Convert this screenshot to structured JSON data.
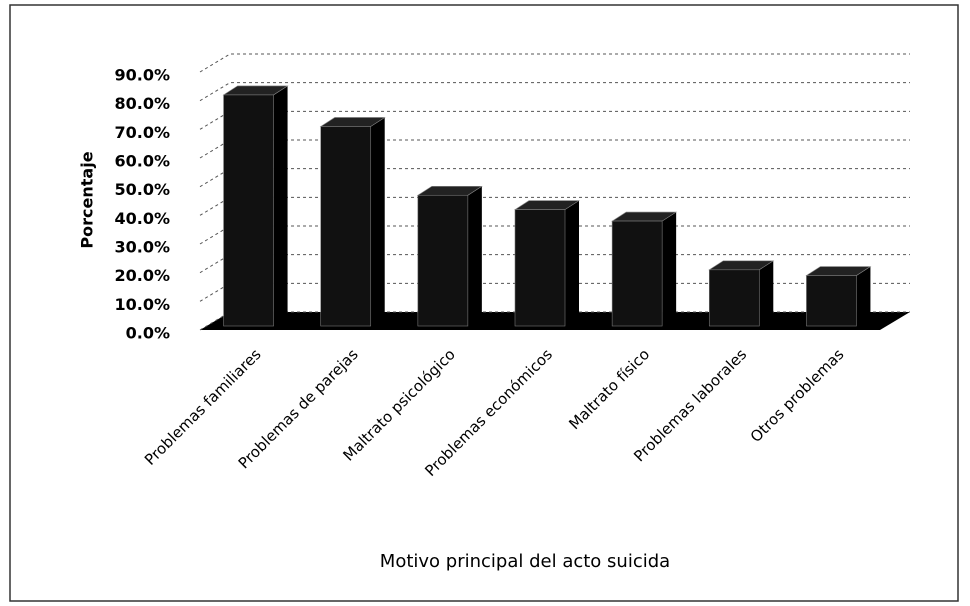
{
  "chart_data": {
    "type": "bar",
    "x_label": "Motivo principal del acto suicida",
    "y_label": "Porcentaje",
    "categories": [
      "Problemas familiares",
      "Problemas de parejas",
      "Maltrato psicológico",
      "Problemas económicos",
      "Maltrato físico",
      "Problemas laborales",
      "Otros problemas"
    ],
    "values": [
      82,
      71,
      47,
      42,
      38,
      21,
      19
    ],
    "color": "#111111",
    "ylim": [
      0,
      90
    ],
    "yticks": [
      {
        "value": 0,
        "label": "0.0%"
      },
      {
        "value": 10,
        "label": "10.0%"
      },
      {
        "value": 20,
        "label": "20.0%"
      },
      {
        "value": 30,
        "label": "30.0%"
      },
      {
        "value": 40,
        "label": "40.0%"
      },
      {
        "value": 50,
        "label": "50.0%"
      },
      {
        "value": 60,
        "label": "60.0%"
      },
      {
        "value": 70,
        "label": "70.0%"
      },
      {
        "value": 80,
        "label": "80.0%"
      },
      {
        "value": 90,
        "label": "90.0%"
      }
    ],
    "grid": true
  }
}
